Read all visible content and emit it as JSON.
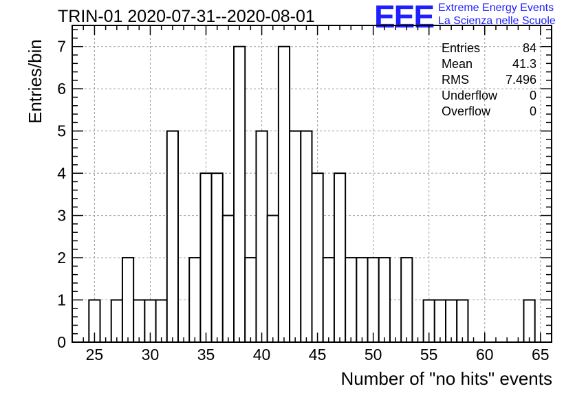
{
  "chart_data": {
    "type": "bar",
    "title": "TRIN-01 2020-07-31--2020-08-01",
    "xlabel": "Number of \"no hits\" events",
    "ylabel": "Entries/bin",
    "xlim": [
      23,
      66
    ],
    "ylim": [
      0,
      7.5
    ],
    "grid": true,
    "x_ticks": [
      "25",
      "30",
      "35",
      "40",
      "45",
      "50",
      "55",
      "60",
      "65"
    ],
    "y_ticks": [
      "0",
      "1",
      "2",
      "3",
      "4",
      "5",
      "6",
      "7"
    ],
    "bins": [
      {
        "x": 25,
        "value": 1
      },
      {
        "x": 27,
        "value": 1
      },
      {
        "x": 28,
        "value": 2
      },
      {
        "x": 29,
        "value": 1
      },
      {
        "x": 30,
        "value": 1
      },
      {
        "x": 31,
        "value": 1
      },
      {
        "x": 32,
        "value": 5
      },
      {
        "x": 34,
        "value": 2
      },
      {
        "x": 35,
        "value": 4
      },
      {
        "x": 36,
        "value": 4
      },
      {
        "x": 37,
        "value": 3
      },
      {
        "x": 38,
        "value": 7
      },
      {
        "x": 39,
        "value": 2
      },
      {
        "x": 40,
        "value": 5
      },
      {
        "x": 41,
        "value": 3
      },
      {
        "x": 42,
        "value": 7
      },
      {
        "x": 43,
        "value": 5
      },
      {
        "x": 44,
        "value": 5
      },
      {
        "x": 45,
        "value": 4
      },
      {
        "x": 46,
        "value": 2
      },
      {
        "x": 47,
        "value": 4
      },
      {
        "x": 48,
        "value": 2
      },
      {
        "x": 49,
        "value": 2
      },
      {
        "x": 50,
        "value": 2
      },
      {
        "x": 51,
        "value": 2
      },
      {
        "x": 53,
        "value": 2
      },
      {
        "x": 55,
        "value": 1
      },
      {
        "x": 56,
        "value": 1
      },
      {
        "x": 57,
        "value": 1
      },
      {
        "x": 58,
        "value": 1
      },
      {
        "x": 64,
        "value": 1
      }
    ],
    "stats": [
      {
        "label": "Entries",
        "value": "84"
      },
      {
        "label": "Mean",
        "value": "41.3"
      },
      {
        "label": "RMS",
        "value": "7.496"
      },
      {
        "label": "Underflow",
        "value": "0"
      },
      {
        "label": "Overflow",
        "value": "0"
      }
    ]
  },
  "logo": {
    "mark": "EEE",
    "line1": "Extreme Energy Events",
    "line2": "La Scienza nelle Scuole",
    "color": "#2020ff"
  }
}
